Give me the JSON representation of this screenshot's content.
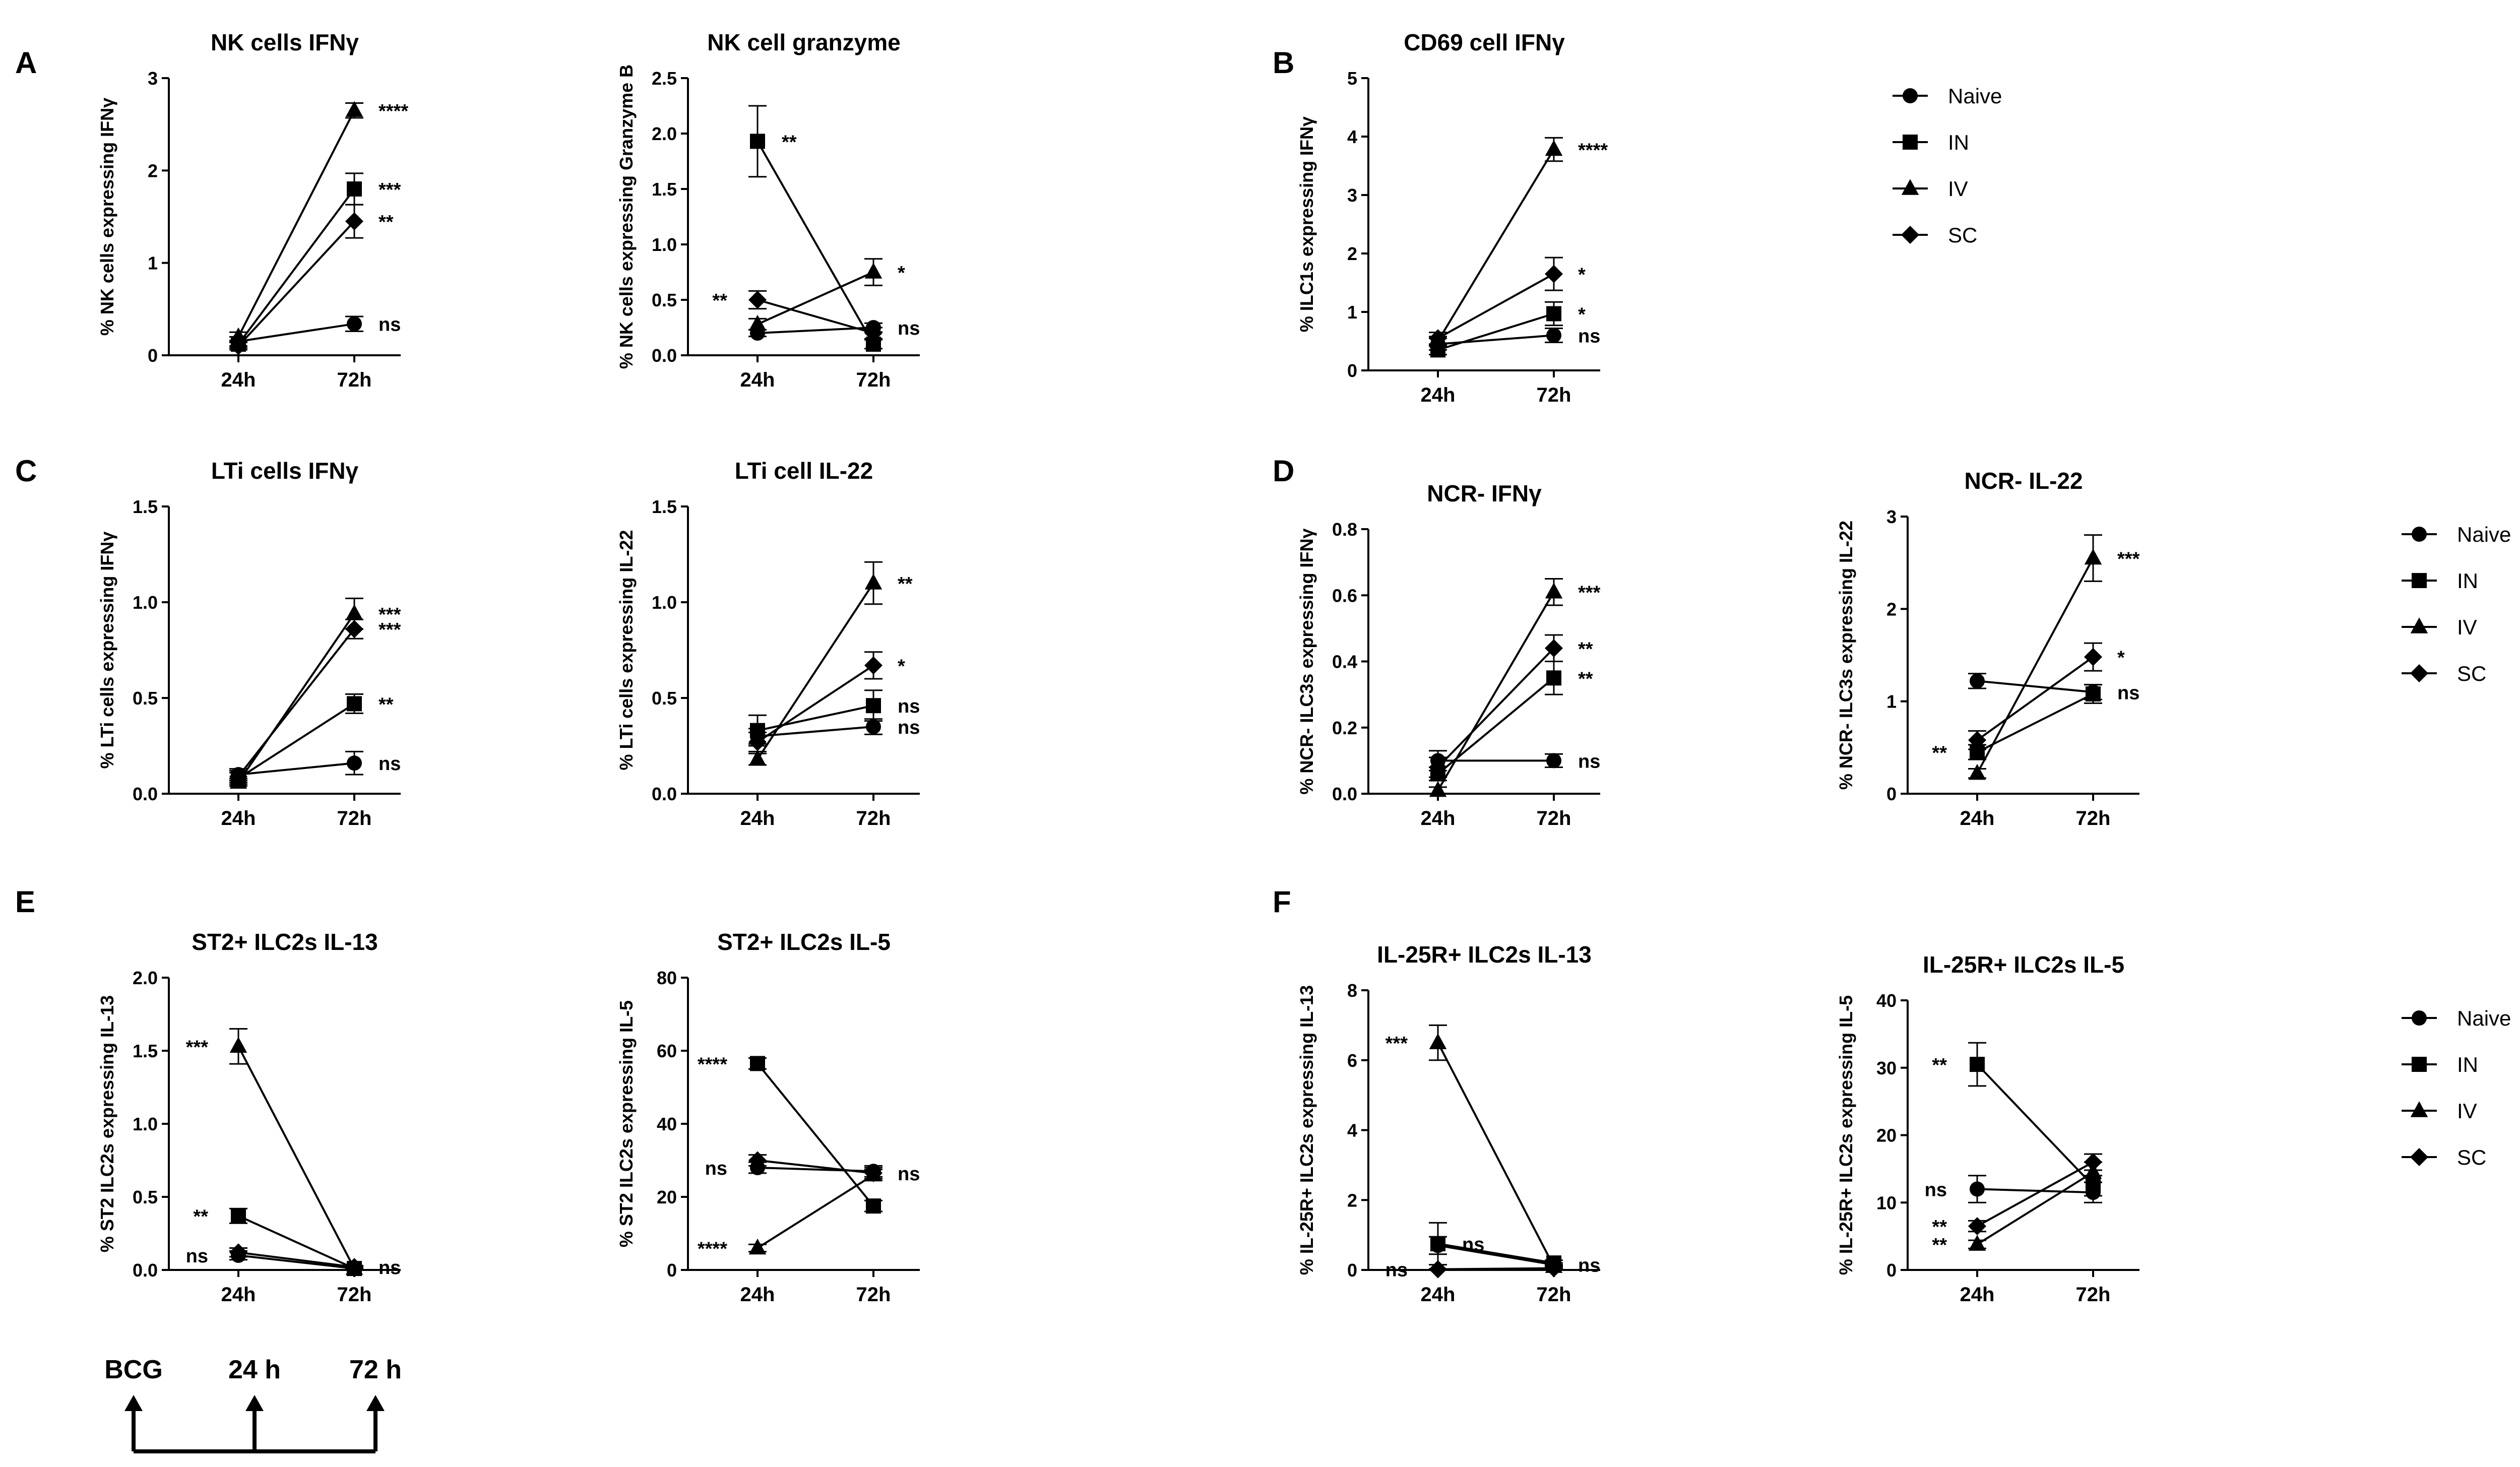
{
  "figure": {
    "panel_letters": [
      "A",
      "B",
      "C",
      "D",
      "E",
      "F"
    ],
    "legend": [
      {
        "label": "Naive",
        "marker": "circle"
      },
      {
        "label": "IN",
        "marker": "square"
      },
      {
        "label": "IV",
        "marker": "triangle"
      },
      {
        "label": "SC",
        "marker": "diamond"
      }
    ],
    "timeline": {
      "labels": [
        "BCG",
        "24 h",
        "72 h"
      ]
    }
  },
  "chart_data": [
    {
      "id": "nk-ifng",
      "type": "line",
      "title": "NK cells IFNγ",
      "ylabel": "% NK cells expressing IFNγ",
      "categories": [
        "24h",
        "72h"
      ],
      "ylim": [
        0,
        3
      ],
      "yticks": [
        0,
        1,
        2,
        3
      ],
      "ytick_labels": [
        "0",
        "1",
        "2",
        "3"
      ],
      "series": [
        {
          "name": "Naive",
          "values": [
            0.15,
            0.34
          ],
          "errors": [
            0.05,
            0.08
          ],
          "annotation": "ns"
        },
        {
          "name": "IN",
          "values": [
            0.12,
            1.8
          ],
          "errors": [
            0.04,
            0.17
          ],
          "annotation": "***"
        },
        {
          "name": "IV",
          "values": [
            0.2,
            2.65
          ],
          "errors": [
            0.05,
            0.08
          ],
          "annotation": "****"
        },
        {
          "name": "SC",
          "values": [
            0.1,
            1.45
          ],
          "errors": [
            0.04,
            0.18
          ],
          "annotation": "**"
        }
      ]
    },
    {
      "id": "nk-granzyme",
      "type": "line",
      "title": "NK cell granzyme",
      "ylabel": "% NK cells expressing Granzyme B",
      "categories": [
        "24h",
        "72h"
      ],
      "ylim": [
        0,
        2.5
      ],
      "yticks": [
        0,
        0.5,
        1,
        1.5,
        2,
        2.5
      ],
      "ytick_labels": [
        "0.0",
        "0.5",
        "1.0",
        "1.5",
        "2.0",
        "2.5"
      ],
      "series": [
        {
          "name": "Naive",
          "values": [
            0.2,
            0.25
          ],
          "errors": [
            0.03,
            0.04
          ],
          "annotation": "ns"
        },
        {
          "name": "IN",
          "values": [
            1.93,
            0.1
          ],
          "errors": [
            0.32,
            0.04
          ],
          "annotation": "**",
          "annotation_at": 0
        },
        {
          "name": "IV",
          "values": [
            0.28,
            0.75
          ],
          "errors": [
            0.05,
            0.12
          ],
          "annotation": "*"
        },
        {
          "name": "SC",
          "values": [
            0.5,
            0.2
          ],
          "errors": [
            0.08,
            0.05
          ],
          "annotation": "**",
          "annotation_at": 0,
          "annotation_side": "left"
        }
      ]
    },
    {
      "id": "cd69-ifng",
      "type": "line",
      "title": "CD69 cell IFNγ",
      "ylabel": "% ILC1s expressing IFNγ",
      "categories": [
        "24h",
        "72h"
      ],
      "ylim": [
        0,
        5
      ],
      "yticks": [
        0,
        1,
        2,
        3,
        4,
        5
      ],
      "ytick_labels": [
        "0",
        "1",
        "2",
        "3",
        "4",
        "5"
      ],
      "series": [
        {
          "name": "Naive",
          "values": [
            0.45,
            0.6
          ],
          "errors": [
            0.1,
            0.12
          ],
          "annotation": "ns"
        },
        {
          "name": "IN",
          "values": [
            0.35,
            0.97
          ],
          "errors": [
            0.08,
            0.2
          ],
          "annotation": "*"
        },
        {
          "name": "IV",
          "values": [
            0.5,
            3.78
          ],
          "errors": [
            0.08,
            0.2
          ],
          "annotation": "****"
        },
        {
          "name": "SC",
          "values": [
            0.55,
            1.65
          ],
          "errors": [
            0.1,
            0.28
          ],
          "annotation": "*"
        }
      ]
    },
    {
      "id": "lti-ifng",
      "type": "line",
      "title": "LTi cells IFNγ",
      "ylabel": "% LTi cells expressing IFNγ",
      "categories": [
        "24h",
        "72h"
      ],
      "ylim": [
        0,
        1.5
      ],
      "yticks": [
        0,
        0.5,
        1,
        1.5
      ],
      "ytick_labels": [
        "0.0",
        "0.5",
        "1.0",
        "1.5"
      ],
      "series": [
        {
          "name": "Naive",
          "values": [
            0.1,
            0.16
          ],
          "errors": [
            0.03,
            0.06
          ],
          "annotation": "ns"
        },
        {
          "name": "IN",
          "values": [
            0.08,
            0.47
          ],
          "errors": [
            0.03,
            0.05
          ],
          "annotation": "**"
        },
        {
          "name": "IV",
          "values": [
            0.06,
            0.94
          ],
          "errors": [
            0.02,
            0.08
          ],
          "annotation": "***"
        },
        {
          "name": "SC",
          "values": [
            0.09,
            0.86
          ],
          "errors": [
            0.03,
            0.05
          ],
          "annotation": "***"
        }
      ]
    },
    {
      "id": "lti-il22",
      "type": "line",
      "title": "LTi cell IL-22",
      "ylabel": "% LTi cells expressing IL-22",
      "categories": [
        "24h",
        "72h"
      ],
      "ylim": [
        0,
        1.5
      ],
      "yticks": [
        0,
        0.5,
        1,
        1.5
      ],
      "ytick_labels": [
        "0.0",
        "0.5",
        "1.0",
        "1.5"
      ],
      "series": [
        {
          "name": "Naive",
          "values": [
            0.3,
            0.35
          ],
          "errors": [
            0.04,
            0.04
          ],
          "annotation": "ns"
        },
        {
          "name": "IN",
          "values": [
            0.33,
            0.46
          ],
          "errors": [
            0.08,
            0.08
          ],
          "annotation": "ns"
        },
        {
          "name": "IV",
          "values": [
            0.18,
            1.1
          ],
          "errors": [
            0.03,
            0.11
          ],
          "annotation": "**"
        },
        {
          "name": "SC",
          "values": [
            0.27,
            0.67
          ],
          "errors": [
            0.05,
            0.07
          ],
          "annotation": "*"
        }
      ]
    },
    {
      "id": "ncr-ifng",
      "type": "line",
      "title": "NCR- IFNγ",
      "ylabel": "% NCR- ILC3s expressing IFNγ",
      "categories": [
        "24h",
        "72h"
      ],
      "ylim": [
        0,
        0.8
      ],
      "yticks": [
        0,
        0.2,
        0.4,
        0.6,
        0.8
      ],
      "ytick_labels": [
        "0.0",
        "0.2",
        "0.4",
        "0.6",
        "0.8"
      ],
      "series": [
        {
          "name": "Naive",
          "values": [
            0.1,
            0.1
          ],
          "errors": [
            0.03,
            0.02
          ],
          "annotation": "ns"
        },
        {
          "name": "IN",
          "values": [
            0.06,
            0.35
          ],
          "errors": [
            0.02,
            0.05
          ],
          "annotation": "**"
        },
        {
          "name": "IV",
          "values": [
            0.01,
            0.61
          ],
          "errors": [
            0.01,
            0.04
          ],
          "annotation": "***"
        },
        {
          "name": "SC",
          "values": [
            0.08,
            0.44
          ],
          "errors": [
            0.03,
            0.04
          ],
          "annotation": "**"
        }
      ]
    },
    {
      "id": "ncr-il22",
      "type": "line",
      "title": "NCR- IL-22",
      "ylabel": "% NCR- ILC3s expressing IL-22",
      "categories": [
        "24h",
        "72h"
      ],
      "ylim": [
        0,
        3
      ],
      "yticks": [
        0,
        1,
        2,
        3
      ],
      "ytick_labels": [
        "0",
        "1",
        "2",
        "3"
      ],
      "series": [
        {
          "name": "Naive",
          "values": [
            1.22,
            1.1
          ],
          "errors": [
            0.08,
            0.08
          ],
          "annotation": "ns"
        },
        {
          "name": "IN",
          "values": [
            0.45,
            1.08
          ],
          "errors": [
            0.08,
            0.1
          ],
          "annotation": "**",
          "annotation_at": 0,
          "annotation_side": "left"
        },
        {
          "name": "IV",
          "values": [
            0.22,
            2.55
          ],
          "errors": [
            0.05,
            0.25
          ],
          "annotation": "***"
        },
        {
          "name": "SC",
          "values": [
            0.58,
            1.48
          ],
          "errors": [
            0.1,
            0.15
          ],
          "annotation": "*"
        }
      ]
    },
    {
      "id": "st2-il13",
      "type": "line",
      "title": "ST2+ ILC2s IL-13",
      "ylabel": "% ST2 ILC2s  expressing IL-13",
      "categories": [
        "24h",
        "72h"
      ],
      "ylim": [
        0,
        2
      ],
      "yticks": [
        0,
        0.5,
        1,
        1.5,
        2
      ],
      "ytick_labels": [
        "0.0",
        "0.5",
        "1.0",
        "1.5",
        "2.0"
      ],
      "series": [
        {
          "name": "Naive",
          "values": [
            0.1,
            0.01
          ],
          "errors": [
            0.03,
            0.01
          ],
          "annotation": "ns",
          "annotation_at": 0,
          "annotation_side": "left"
        },
        {
          "name": "IN",
          "values": [
            0.37,
            0.01
          ],
          "errors": [
            0.05,
            0.01
          ],
          "annotation": "**",
          "annotation_at": 0,
          "annotation_side": "left"
        },
        {
          "name": "IV",
          "values": [
            1.53,
            0.01
          ],
          "errors": [
            0.12,
            0.01
          ],
          "annotation": "***",
          "annotation_at": 0,
          "annotation_side": "left"
        },
        {
          "name": "SC",
          "values": [
            0.12,
            0.02
          ],
          "errors": [
            0.03,
            0.01
          ],
          "annotation": "ns"
        }
      ]
    },
    {
      "id": "st2-il5",
      "type": "line",
      "title": "ST2+ ILC2s IL-5",
      "ylabel": "% ST2 ILC2s  expressing IL-5",
      "categories": [
        "24h",
        "72h"
      ],
      "ylim": [
        0,
        80
      ],
      "yticks": [
        0,
        20,
        40,
        60,
        80
      ],
      "ytick_labels": [
        "0",
        "20",
        "40",
        "60",
        "80"
      ],
      "series": [
        {
          "name": "Naive",
          "values": [
            28,
            27
          ],
          "errors": [
            1.5,
            1.5
          ],
          "annotation": "ns",
          "annotation_at": 0,
          "annotation_side": "left"
        },
        {
          "name": "IN",
          "values": [
            56.5,
            17.5
          ],
          "errors": [
            1.5,
            1.5
          ],
          "annotation": "****",
          "annotation_at": 0,
          "annotation_side": "left"
        },
        {
          "name": "IV",
          "values": [
            6,
            26
          ],
          "errors": [
            1,
            1.5
          ],
          "annotation": "****",
          "annotation_at": 0,
          "annotation_side": "left"
        },
        {
          "name": "SC",
          "values": [
            30,
            26.5
          ],
          "errors": [
            1.5,
            1.5
          ],
          "annotation": "ns"
        }
      ]
    },
    {
      "id": "il25r-il13",
      "type": "line",
      "title": "IL-25R+ ILC2s IL-13",
      "ylabel": "% IL-25R+ ILC2s  expressing IL-13",
      "categories": [
        "24h",
        "72h"
      ],
      "ylim": [
        0,
        8
      ],
      "yticks": [
        0,
        2,
        4,
        6,
        8
      ],
      "ytick_labels": [
        "0",
        "2",
        "4",
        "6",
        "8"
      ],
      "series": [
        {
          "name": "Naive",
          "values": [
            0.7,
            0.15
          ],
          "errors": [
            0.25,
            0.05
          ],
          "annotation": "ns"
        },
        {
          "name": "IN",
          "values": [
            0.75,
            0.2
          ],
          "errors": [
            0.6,
            0.08
          ],
          "annotation": "ns",
          "annotation_at": 0
        },
        {
          "name": "IV",
          "values": [
            6.5,
            0.1
          ],
          "errors": [
            0.5,
            0.05
          ],
          "annotation": "***",
          "annotation_at": 0,
          "annotation_side": "left"
        },
        {
          "name": "SC",
          "values": [
            0.02,
            0.05
          ],
          "errors": [
            0.01,
            0.02
          ],
          "annotation": "ns",
          "annotation_at": 0,
          "annotation_side": "left"
        }
      ]
    },
    {
      "id": "il25r-il5",
      "type": "line",
      "title": "IL-25R+ ILC2s IL-5",
      "ylabel": "% IL-25R+ ILC2s  expressing IL-5",
      "categories": [
        "24h",
        "72h"
      ],
      "ylim": [
        0,
        40
      ],
      "yticks": [
        0,
        10,
        20,
        30,
        40
      ],
      "ytick_labels": [
        "0",
        "10",
        "20",
        "30",
        "40"
      ],
      "series": [
        {
          "name": "Naive",
          "values": [
            12,
            11.5
          ],
          "errors": [
            2,
            1.5
          ],
          "annotation": "ns",
          "annotation_at": 0,
          "annotation_side": "left"
        },
        {
          "name": "IN",
          "values": [
            30.5,
            12.5
          ],
          "errors": [
            3.2,
            1.5
          ],
          "annotation": "**",
          "annotation_at": 0,
          "annotation_side": "left"
        },
        {
          "name": "IV",
          "values": [
            3.8,
            14.5
          ],
          "errors": [
            0.6,
            1.5
          ],
          "annotation": "**",
          "annotation_at": 0,
          "annotation_side": "left"
        },
        {
          "name": "SC",
          "values": [
            6.5,
            16
          ],
          "errors": [
            0.8,
            1.2
          ],
          "annotation": "**",
          "annotation_at": 0,
          "annotation_side": "left"
        }
      ]
    }
  ]
}
